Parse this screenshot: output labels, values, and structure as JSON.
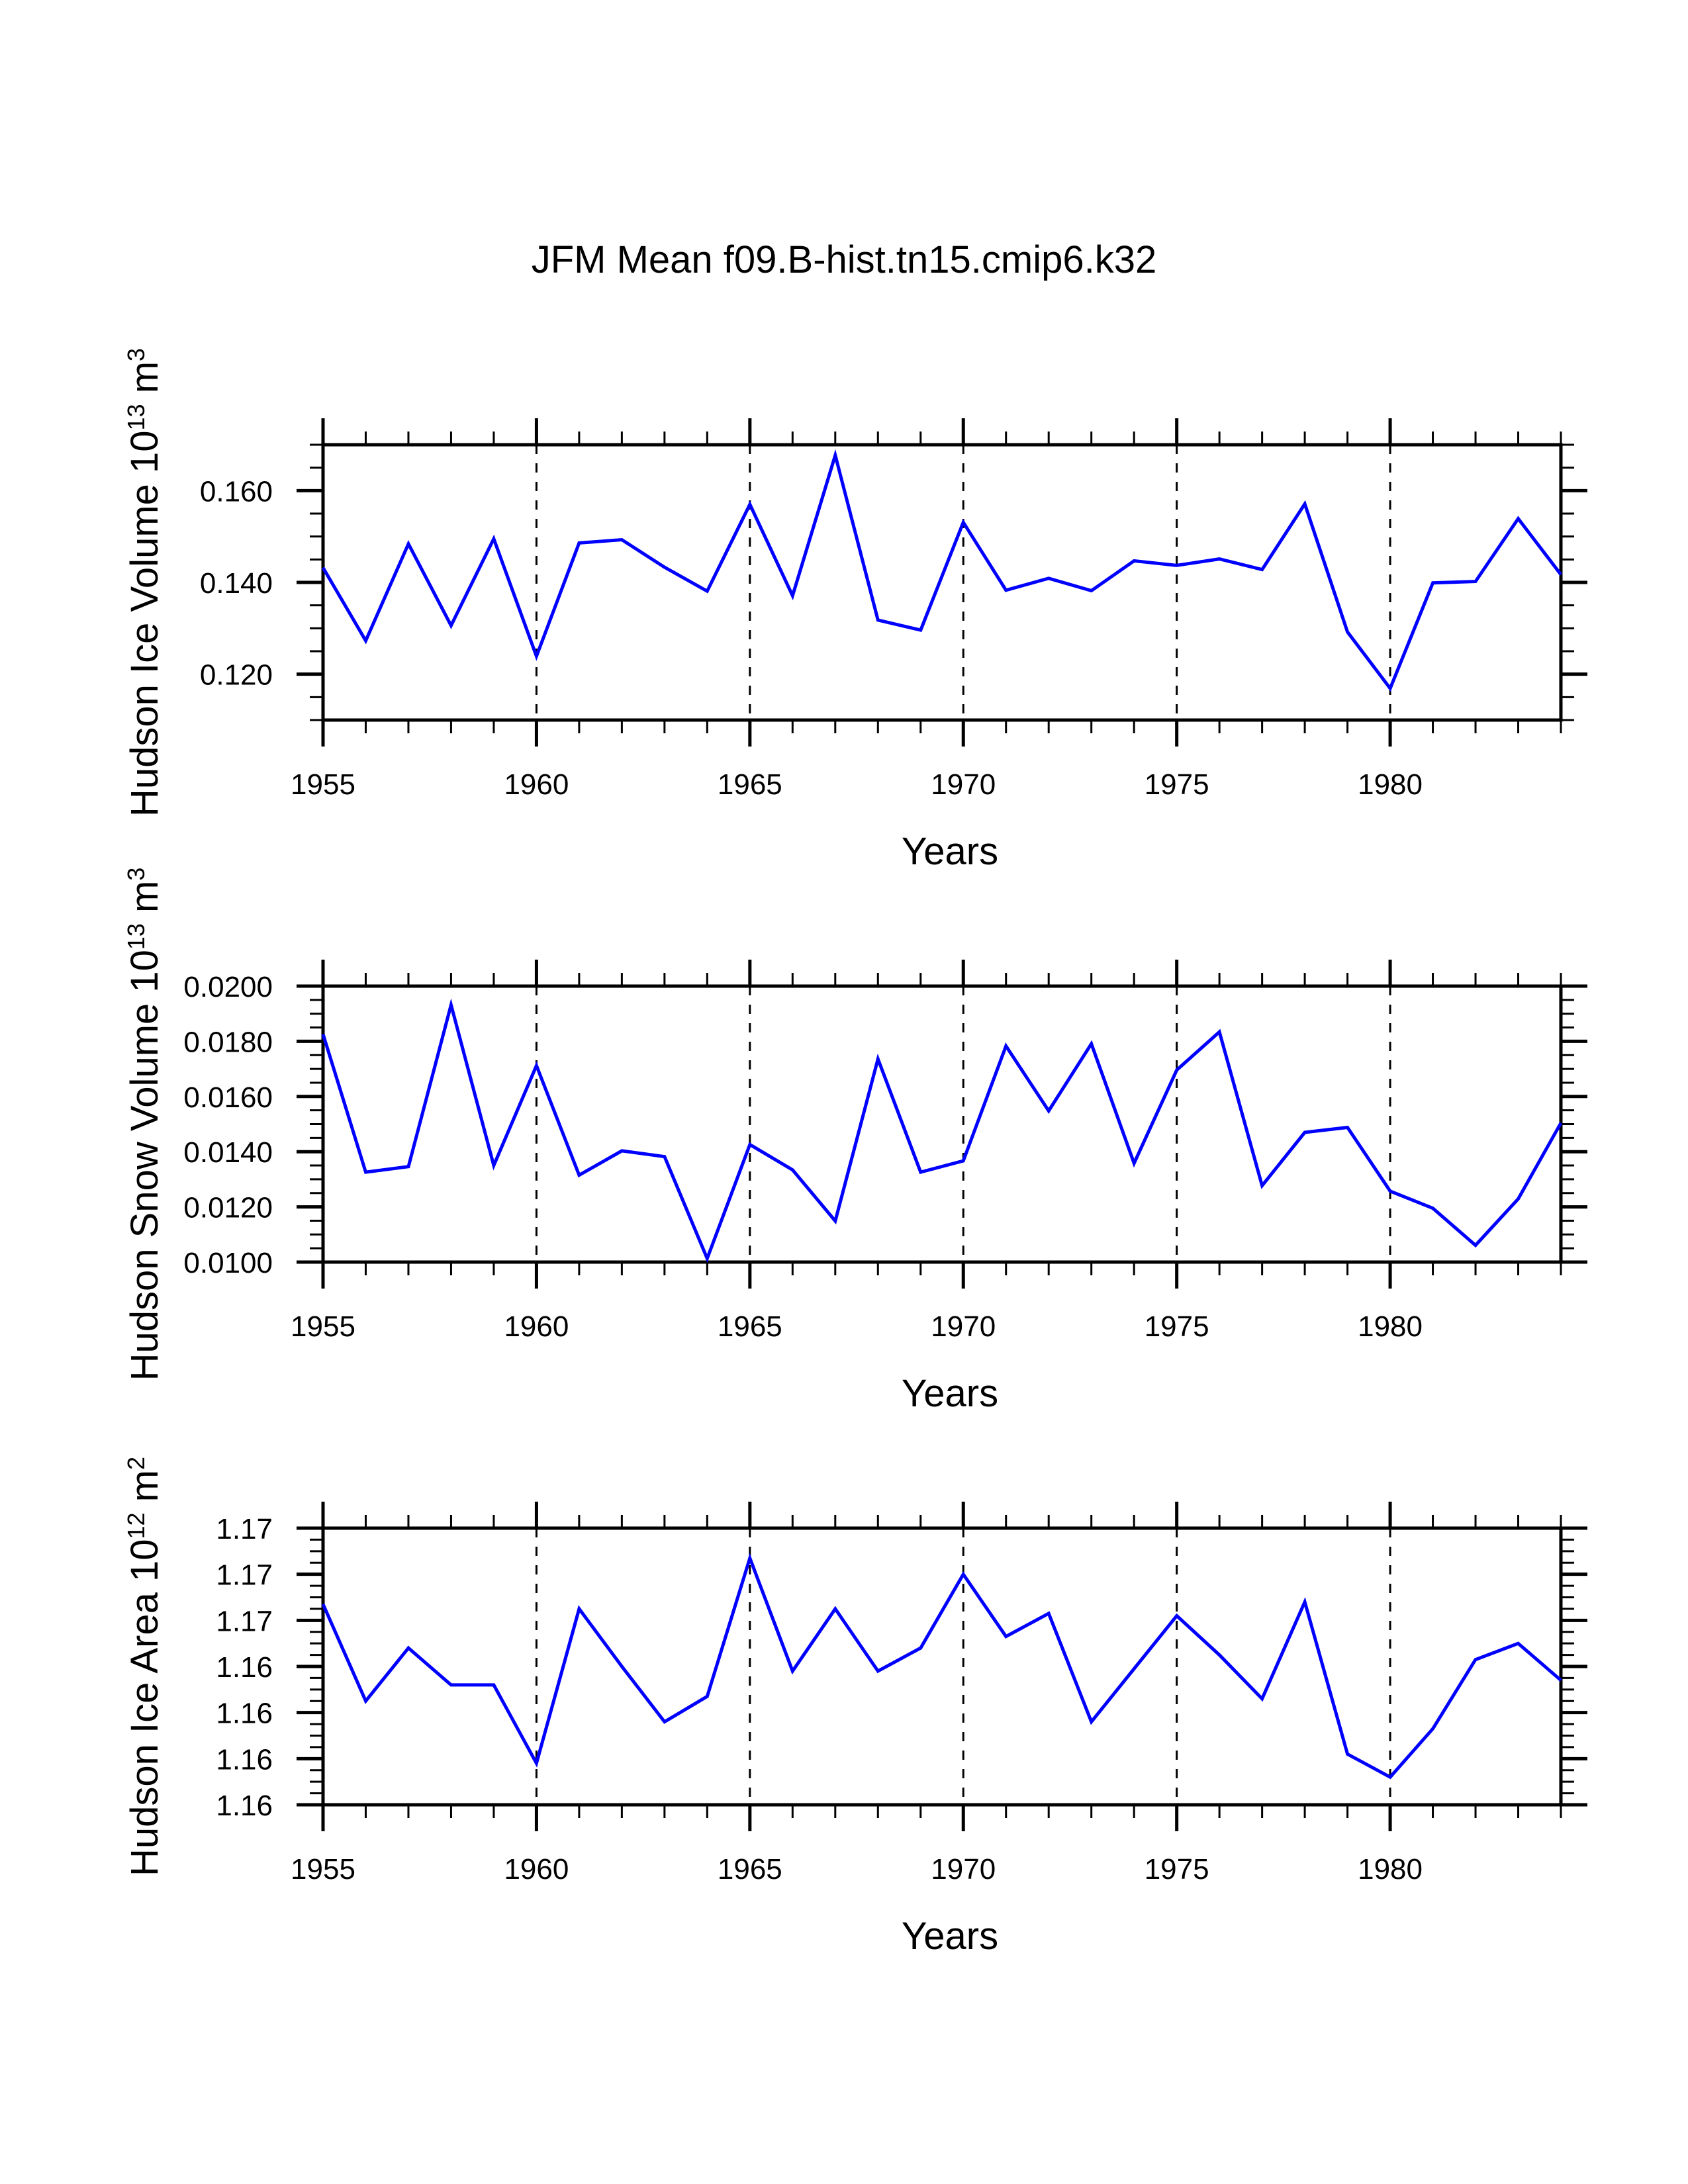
{
  "figure": {
    "title": "JFM Mean f09.B-hist.tn15.cmip6.k32",
    "line_color": "#0000ff",
    "axis_color": "#000000",
    "grid_style": "dashed vertical lines at major x ticks"
  },
  "chart_data": [
    {
      "type": "line",
      "title": "",
      "xlabel": "Years",
      "ylabel": "Hudson Ice Volume 10^13 m^3",
      "ylabel_parts": {
        "base": "Hudson Ice Volume 10",
        "exp": "13",
        "unit": " m",
        "unit_exp": "3"
      },
      "xlim": [
        1955,
        1984
      ],
      "ylim": [
        0.11,
        0.17
      ],
      "x_major_ticks": [
        1955,
        1960,
        1965,
        1970,
        1975,
        1980
      ],
      "x_tick_labels": [
        "1955",
        "1960",
        "1965",
        "1970",
        "1975",
        "1980"
      ],
      "x_minor_step": 1,
      "y_major_ticks": [
        0.12,
        0.14,
        0.16
      ],
      "y_tick_labels": [
        "0.120",
        "0.140",
        "0.160"
      ],
      "y_minor_step": 0.005,
      "grid": "x-major dashed",
      "legend": "none",
      "x": [
        1955,
        1956,
        1957,
        1958,
        1959,
        1960,
        1961,
        1962,
        1963,
        1964,
        1965,
        1966,
        1967,
        1968,
        1969,
        1970,
        1971,
        1972,
        1973,
        1974,
        1975,
        1976,
        1977,
        1978,
        1979,
        1980,
        1981,
        1982,
        1983,
        1984
      ],
      "series": [
        {
          "name": "Hudson Ice Volume",
          "color": "#0000ff",
          "values": [
            0.1432,
            0.1273,
            0.1484,
            0.1306,
            0.1495,
            0.1239,
            0.1486,
            0.1493,
            0.1433,
            0.1381,
            0.157,
            0.1371,
            0.1677,
            0.1318,
            0.1296,
            0.1531,
            0.1383,
            0.1409,
            0.1382,
            0.1447,
            0.1437,
            0.1451,
            0.1428,
            0.1571,
            0.1292,
            0.1169,
            0.1399,
            0.1402,
            0.1539,
            0.1417
          ]
        }
      ]
    },
    {
      "type": "line",
      "title": "",
      "xlabel": "Years",
      "ylabel": "Hudson Snow Volume 10^13 m^3",
      "ylabel_parts": {
        "base": "Hudson Snow Volume 10",
        "exp": "13",
        "unit": " m",
        "unit_exp": "3"
      },
      "xlim": [
        1955,
        1984
      ],
      "ylim": [
        0.01,
        0.02
      ],
      "x_major_ticks": [
        1955,
        1960,
        1965,
        1970,
        1975,
        1980
      ],
      "x_tick_labels": [
        "1955",
        "1960",
        "1965",
        "1970",
        "1975",
        "1980"
      ],
      "x_minor_step": 1,
      "y_major_ticks": [
        0.01,
        0.012,
        0.014,
        0.016,
        0.018,
        0.02
      ],
      "y_tick_labels": [
        "0.0100",
        "0.0120",
        "0.0140",
        "0.0160",
        "0.0180",
        "0.0200"
      ],
      "y_minor_step": 0.0005,
      "grid": "x-major dashed",
      "legend": "none",
      "x": [
        1955,
        1956,
        1957,
        1958,
        1959,
        1960,
        1961,
        1962,
        1963,
        1964,
        1965,
        1966,
        1967,
        1968,
        1969,
        1970,
        1971,
        1972,
        1973,
        1974,
        1975,
        1976,
        1977,
        1978,
        1979,
        1980,
        1981,
        1982,
        1983,
        1984
      ],
      "series": [
        {
          "name": "Hudson Snow Volume",
          "color": "#0000ff",
          "values": [
            0.01826,
            0.01326,
            0.01346,
            0.01932,
            0.0135,
            0.01712,
            0.01315,
            0.01403,
            0.01382,
            0.01013,
            0.01426,
            0.01334,
            0.01149,
            0.01736,
            0.01326,
            0.01367,
            0.01783,
            0.01548,
            0.01791,
            0.01358,
            0.01696,
            0.01834,
            0.01277,
            0.0147,
            0.01488,
            0.01257,
            0.01195,
            0.01061,
            0.01229,
            0.01504
          ]
        }
      ]
    },
    {
      "type": "line",
      "title": "",
      "xlabel": "Years",
      "ylabel": "Hudson Ice Area 10^12 m^2",
      "ylabel_parts": {
        "base": "Hudson Ice Area 10",
        "exp": "12",
        "unit": " m",
        "unit_exp": "2"
      },
      "xlim": [
        1955,
        1984
      ],
      "ylim": [
        1.158,
        1.17
      ],
      "x_major_ticks": [
        1955,
        1960,
        1965,
        1970,
        1975,
        1980
      ],
      "x_tick_labels": [
        "1955",
        "1960",
        "1965",
        "1970",
        "1975",
        "1980"
      ],
      "x_minor_step": 1,
      "y_major_ticks": [
        1.158,
        1.16,
        1.162,
        1.164,
        1.166,
        1.168,
        1.17
      ],
      "y_tick_labels": [
        "1.16",
        "1.16",
        "1.16",
        "1.16",
        "1.17",
        "1.17",
        "1.17"
      ],
      "y_minor_step": 0.0005,
      "grid": "x-major dashed",
      "legend": "none",
      "x": [
        1955,
        1956,
        1957,
        1958,
        1959,
        1960,
        1961,
        1962,
        1963,
        1964,
        1965,
        1966,
        1967,
        1968,
        1969,
        1970,
        1971,
        1972,
        1973,
        1974,
        1975,
        1976,
        1977,
        1978,
        1979,
        1980,
        1981,
        1982,
        1983,
        1984
      ],
      "series": [
        {
          "name": "Hudson Ice Area",
          "color": "#0000ff",
          "values": [
            1.1667,
            1.1625,
            1.1648,
            1.1632,
            1.1632,
            1.1598,
            1.1665,
            1.164,
            1.1616,
            1.1627,
            1.1687,
            1.1638,
            1.1665,
            1.1638,
            1.1648,
            1.168,
            1.1653,
            1.1663,
            1.1616,
            1.1639,
            1.1662,
            1.1645,
            1.1626,
            1.1668,
            1.1602,
            1.1592,
            1.1613,
            1.1643,
            1.165,
            1.1634
          ]
        }
      ]
    }
  ]
}
